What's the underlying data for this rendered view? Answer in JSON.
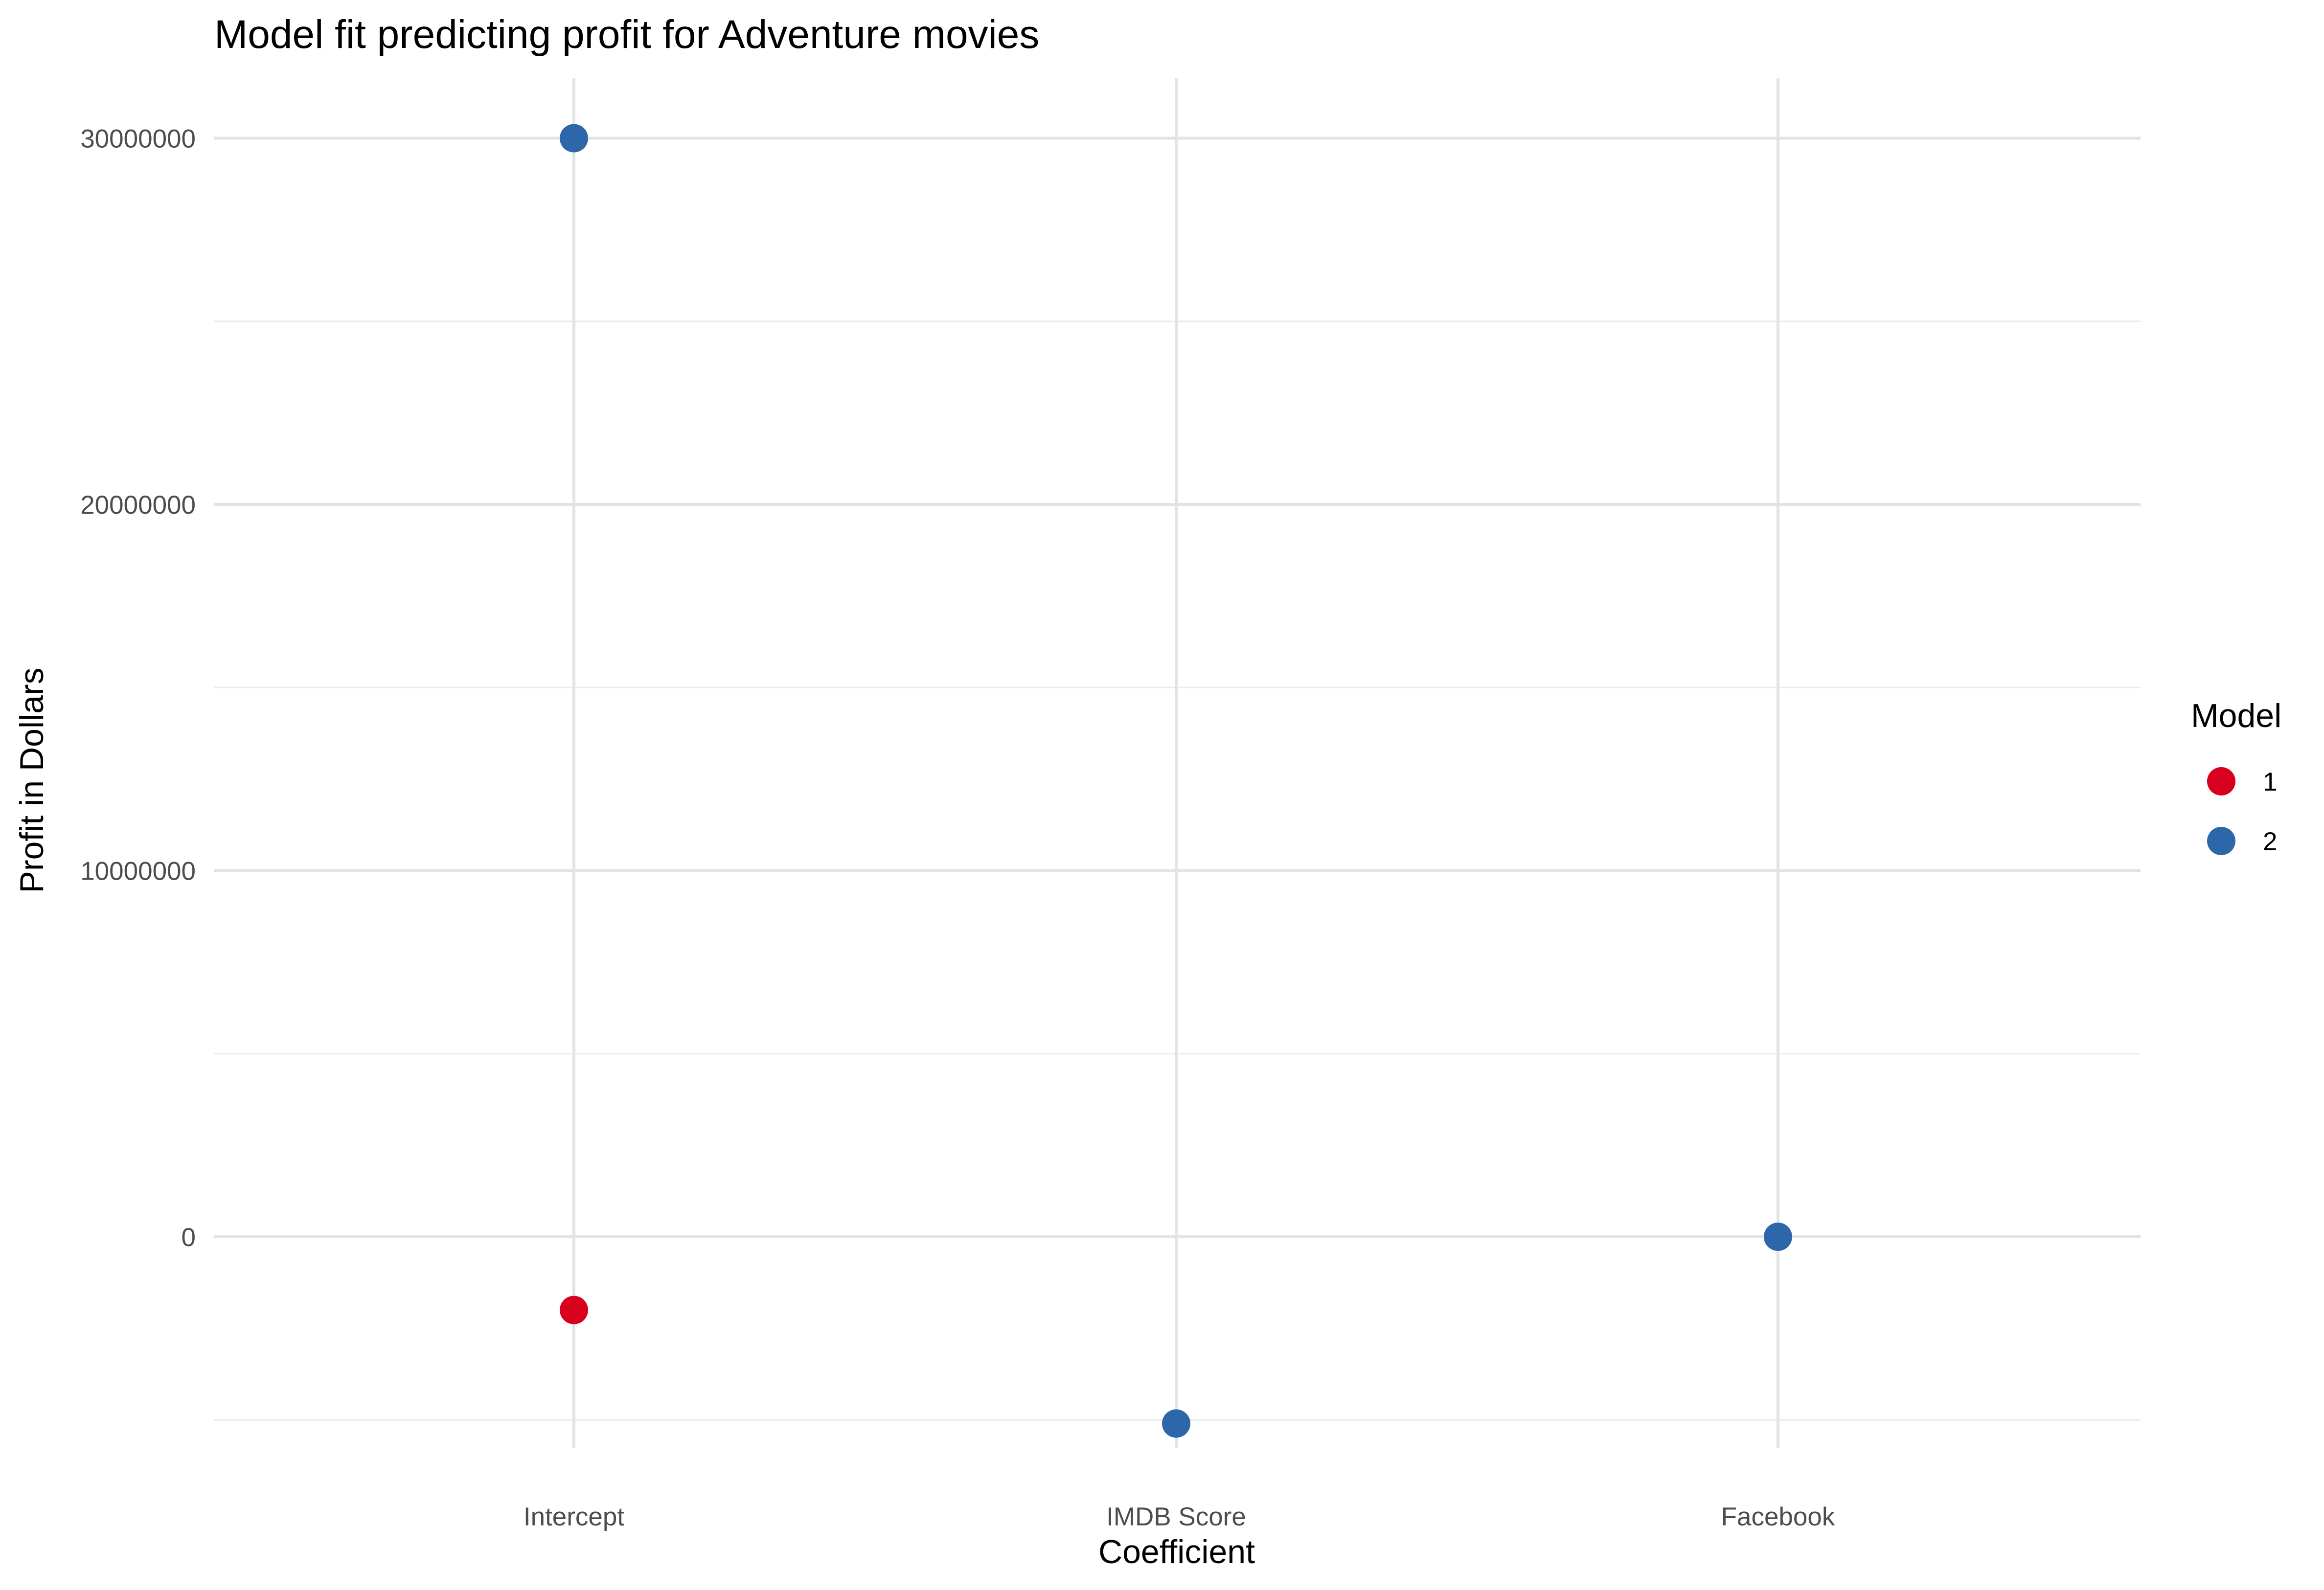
{
  "chart_data": {
    "type": "scatter",
    "title": "Model fit predicting profit for Adventure movies",
    "xlabel": "Coefficient",
    "ylabel": "Profit in Dollars",
    "categories": [
      "Intercept",
      "IMDB Score",
      "Facebook"
    ],
    "ylim": [
      -6800000,
      31800000
    ],
    "yticks": [
      0,
      10000000,
      20000000,
      30000000
    ],
    "ytick_labels": [
      "0",
      "10000000",
      "20000000",
      "30000000"
    ],
    "grid": true,
    "legend": {
      "title": "Model",
      "position": "right",
      "entries": [
        {
          "label": "1",
          "color": "#d7001e"
        },
        {
          "label": "2",
          "color": "#2e67a9"
        }
      ]
    },
    "series": [
      {
        "name": "1",
        "color": "#d7001e",
        "points": [
          {
            "x": "Intercept",
            "y": -2000000
          }
        ]
      },
      {
        "name": "2",
        "color": "#2e67a9",
        "points": [
          {
            "x": "Intercept",
            "y": 30000000
          },
          {
            "x": "IMDB Score",
            "y": -5100000
          },
          {
            "x": "Facebook",
            "y": 0
          }
        ]
      }
    ]
  }
}
